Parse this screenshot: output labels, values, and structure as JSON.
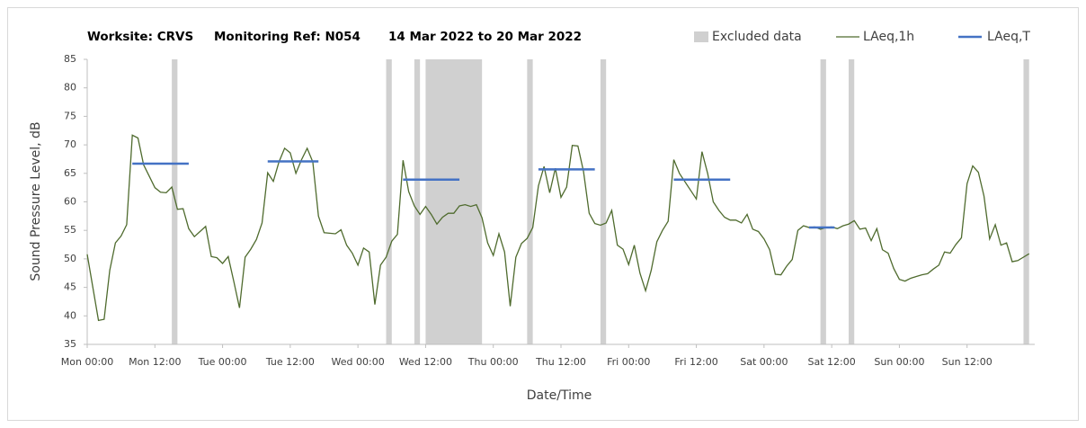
{
  "chart_data": {
    "type": "line",
    "title": [
      "Worksite: CRVS",
      "Monitoring Ref: N054",
      "14 Mar 2022 to 20 Mar 2022"
    ],
    "x_label": "Date/Time",
    "y_label": "Sound Pressure Level, dB",
    "xlim": [
      0,
      168
    ],
    "ylim": [
      35,
      85
    ],
    "yticks": [
      35,
      40,
      45,
      50,
      55,
      60,
      65,
      70,
      75,
      80,
      85
    ],
    "xticks": [
      {
        "value": 0,
        "label": "Mon 00:00"
      },
      {
        "value": 12,
        "label": "Mon 12:00"
      },
      {
        "value": 24,
        "label": "Tue 00:00"
      },
      {
        "value": 36,
        "label": "Tue 12:00"
      },
      {
        "value": 48,
        "label": "Wed 00:00"
      },
      {
        "value": 60,
        "label": "Wed 12:00"
      },
      {
        "value": 72,
        "label": "Thu 00:00"
      },
      {
        "value": 84,
        "label": "Thu 12:00"
      },
      {
        "value": 96,
        "label": "Fri 00:00"
      },
      {
        "value": 108,
        "label": "Fri 12:00"
      },
      {
        "value": 120,
        "label": "Sat 00:00"
      },
      {
        "value": 132,
        "label": "Sat 12:00"
      },
      {
        "value": 144,
        "label": "Sun 00:00"
      },
      {
        "value": 156,
        "label": "Sun 12:00"
      }
    ],
    "excluded": {
      "name": "Excluded data",
      "color": "#d0d0d0",
      "ranges": [
        [
          15,
          16
        ],
        [
          53,
          54
        ],
        [
          58,
          59
        ],
        [
          60,
          70
        ],
        [
          78,
          79
        ],
        [
          91,
          92
        ],
        [
          130,
          131
        ],
        [
          135,
          136
        ],
        [
          166,
          167
        ]
      ]
    },
    "series": [
      {
        "name": "LAeq,1h",
        "color": "#4f6b2e",
        "x": [
          0,
          1,
          2,
          3,
          4,
          5,
          6,
          7,
          8,
          9,
          10,
          11,
          12,
          13,
          14,
          15,
          16,
          17,
          18,
          19,
          20,
          21,
          22,
          23,
          24,
          25,
          26,
          27,
          28,
          29,
          30,
          31,
          32,
          33,
          34,
          35,
          36,
          37,
          38,
          39,
          40,
          41,
          42,
          43,
          44,
          45,
          46,
          47,
          48,
          49,
          50,
          51,
          52,
          53,
          54,
          55,
          56,
          57,
          58,
          59,
          60,
          61,
          62,
          63,
          64,
          65,
          66,
          67,
          68,
          69,
          70,
          71,
          72,
          73,
          74,
          75,
          76,
          77,
          78,
          79,
          80,
          81,
          82,
          83,
          84,
          85,
          86,
          87,
          88,
          89,
          90,
          91,
          92,
          93,
          94,
          95,
          96,
          97,
          98,
          99,
          100,
          101,
          102,
          103,
          104,
          105,
          106,
          107,
          108,
          109,
          110,
          111,
          112,
          113,
          114,
          115,
          116,
          117,
          118,
          119,
          120,
          121,
          122,
          123,
          124,
          125,
          126,
          127,
          128,
          129,
          130,
          131,
          132,
          133,
          134,
          135,
          136,
          137,
          138,
          139,
          140,
          141,
          142,
          143,
          144,
          145,
          146,
          147,
          148,
          149,
          150,
          151,
          152,
          153,
          154,
          155,
          156,
          157,
          158,
          159,
          160,
          161,
          162,
          163,
          164,
          165,
          166,
          167
        ],
        "values": [
          50.8,
          45,
          39.2,
          39.4,
          48,
          52.8,
          54,
          56,
          71.7,
          71.2,
          66.5,
          64.5,
          62.5,
          61.7,
          61.6,
          62.6,
          58.7,
          58.8,
          55.3,
          53.9,
          54.8,
          55.7,
          50.4,
          50.2,
          49.2,
          50.4,
          46,
          41.4,
          50.3,
          51.7,
          53.4,
          56.3,
          65.1,
          63.6,
          67,
          69.4,
          68.6,
          65,
          67.4,
          69.4,
          67,
          57.5,
          54.6,
          54.5,
          54.4,
          55.1,
          52.4,
          51,
          48.9,
          51.9,
          51.2,
          42,
          48.9,
          50.3,
          53.1,
          54.3,
          67.3,
          61.8,
          59.3,
          57.8,
          59.2,
          57.8,
          56.1,
          57.3,
          58,
          58,
          59.3,
          59.5,
          59.2,
          59.5,
          57.2,
          52.8,
          50.6,
          54.4,
          51.2,
          41.7,
          50.3,
          52.7,
          53.6,
          55.5,
          62.8,
          66.2,
          61.6,
          65.9,
          60.8,
          62.6,
          69.9,
          69.8,
          65.3,
          58,
          56.2,
          55.9,
          56.3,
          58.5,
          52.4,
          51.7,
          49,
          52.4,
          47.5,
          44.4,
          48,
          53,
          55,
          56.6,
          67.4,
          65,
          63.5,
          62,
          60.5,
          68.8,
          65,
          60,
          58.5,
          57.3,
          56.8,
          56.8,
          56.3,
          57.8,
          55.2,
          54.8,
          53.5,
          51.6,
          47.3,
          47.2,
          48.7,
          49.9,
          55,
          55.8,
          55.5,
          55.6,
          55.2,
          55.5,
          55.6,
          55.3,
          55.8,
          56.1,
          56.7,
          55.2,
          55.4,
          53.2,
          55.3,
          51.6,
          51,
          48.3,
          46.4,
          46.1,
          46.6,
          46.9,
          47.2,
          47.4,
          48.2,
          48.9,
          51.2,
          51,
          52.5,
          53.7,
          63.2,
          66.3,
          65.2,
          61,
          53.5,
          56,
          52.4,
          52.8,
          49.5,
          49.7,
          50.3,
          50.9
        ]
      },
      {
        "name": "LAeq,T",
        "color": "#4472c4",
        "segments": [
          {
            "x": [
              8,
              18
            ],
            "value": 66.7
          },
          {
            "x": [
              32,
              41
            ],
            "value": 67.1
          },
          {
            "x": [
              56,
              66
            ],
            "value": 63.9
          },
          {
            "x": [
              80,
              90
            ],
            "value": 65.7
          },
          {
            "x": [
              104,
              114
            ],
            "value": 63.9
          },
          {
            "x": [
              128,
              132.5
            ],
            "value": 55.5
          }
        ]
      }
    ]
  }
}
